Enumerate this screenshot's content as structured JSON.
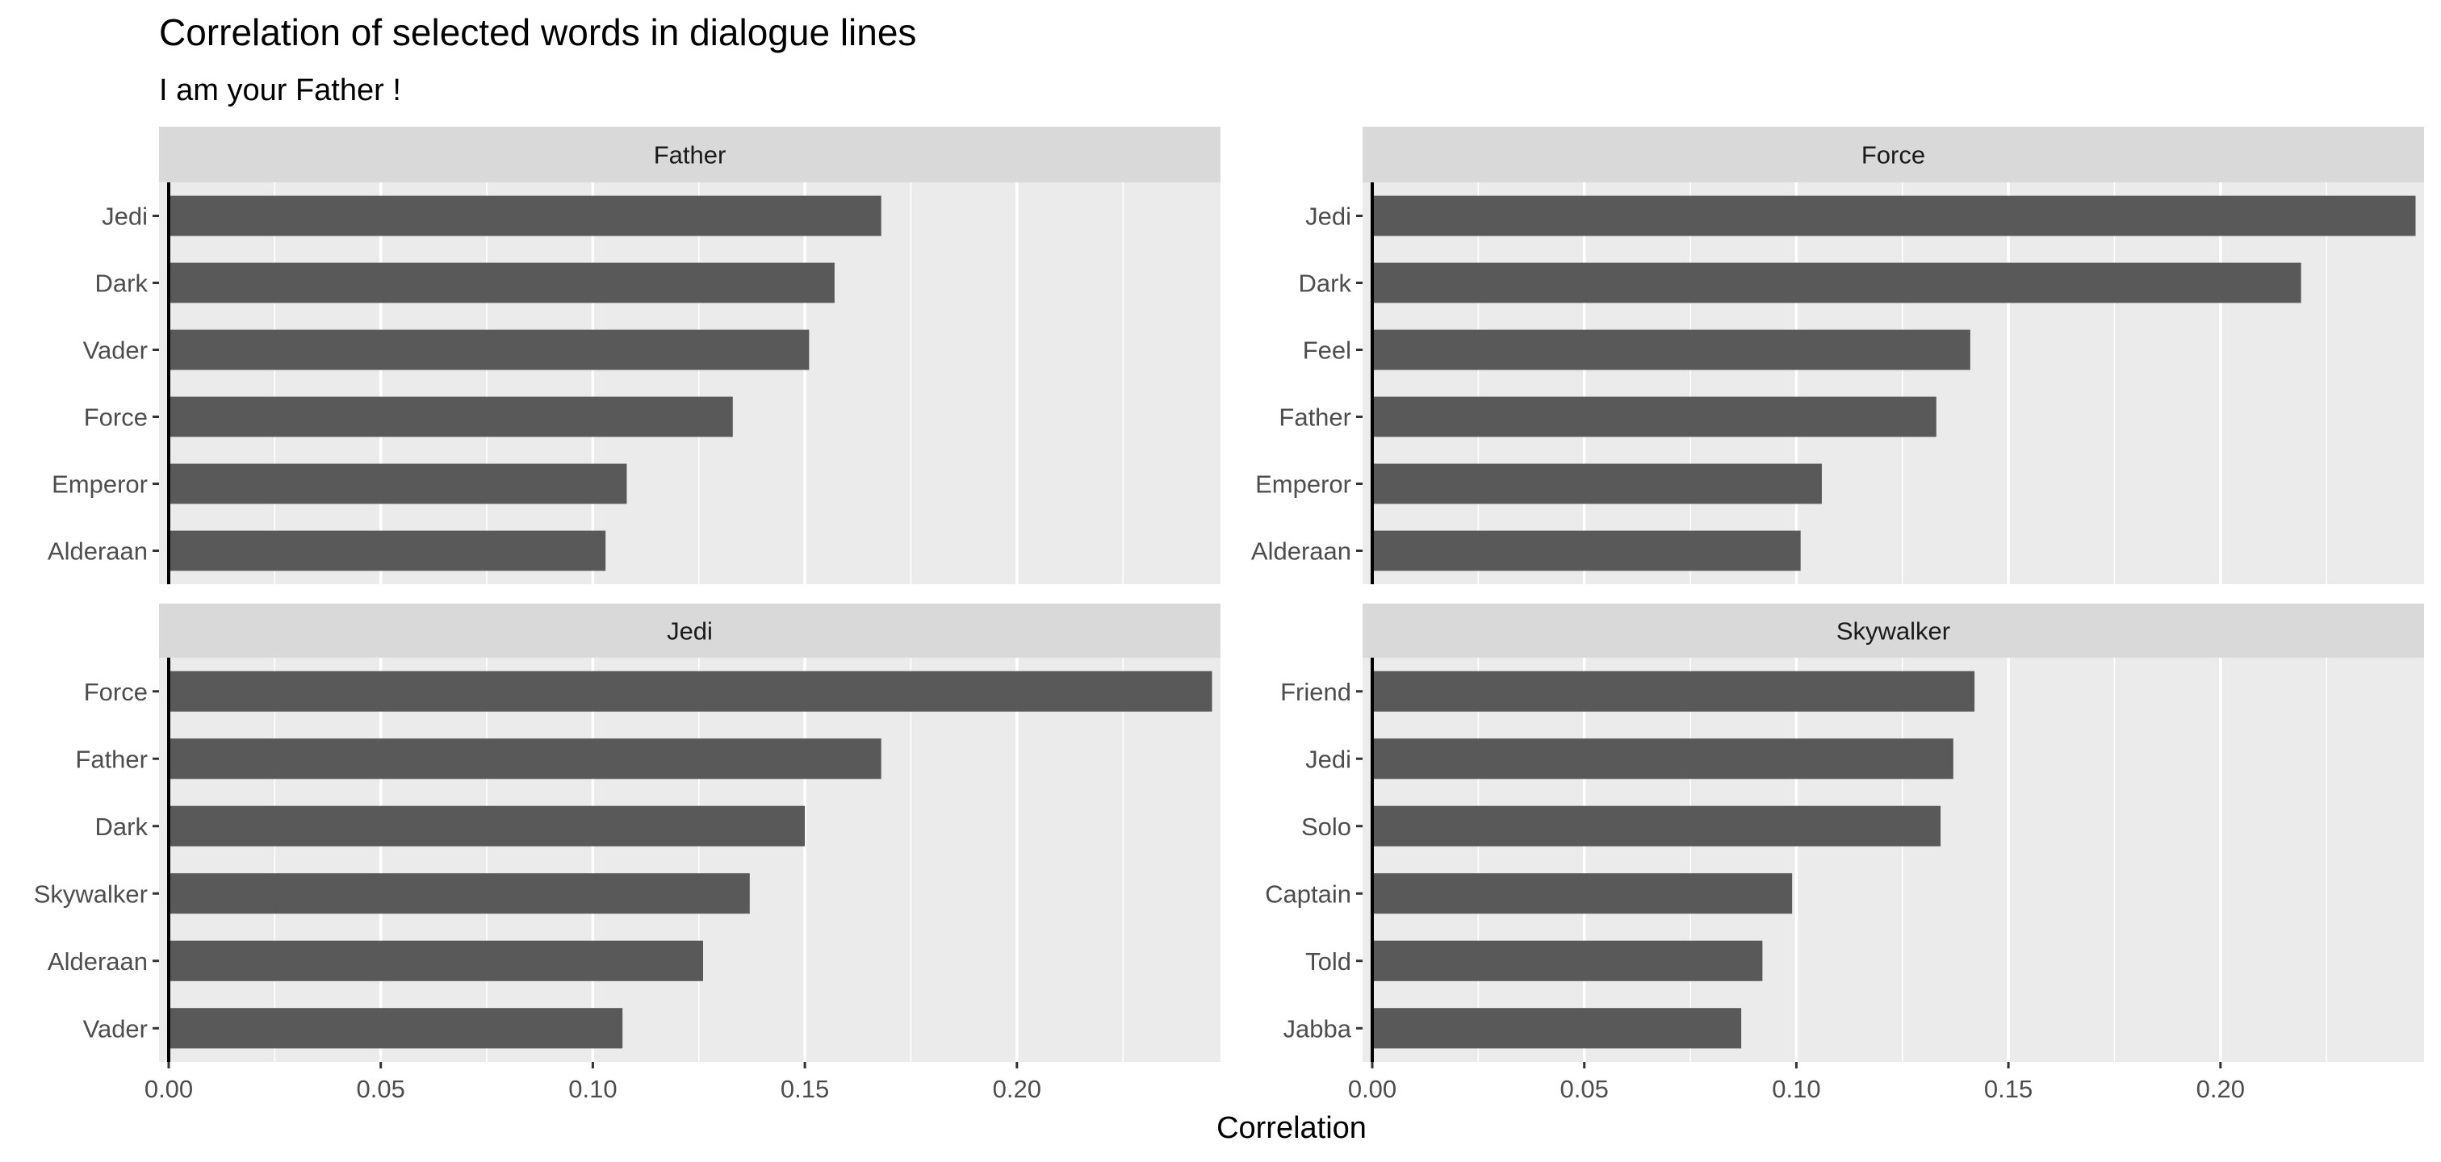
{
  "chart_data": {
    "type": "bar",
    "orientation": "horizontal",
    "title": "Correlation of selected words in dialogue lines",
    "subtitle": "I am your Father !",
    "xlabel": "Correlation",
    "xlim": [
      0,
      0.248
    ],
    "x_ticks": [
      0.0,
      0.05,
      0.1,
      0.15,
      0.2
    ],
    "x_tick_labels": [
      "0.00",
      "0.05",
      "0.10",
      "0.15",
      "0.20"
    ],
    "grid": true,
    "facets": [
      {
        "name": "Father",
        "categories": [
          "Jedi",
          "Dark",
          "Vader",
          "Force",
          "Emperor",
          "Alderaan"
        ],
        "values": [
          0.168,
          0.157,
          0.151,
          0.133,
          0.108,
          0.103
        ]
      },
      {
        "name": "Force",
        "categories": [
          "Jedi",
          "Dark",
          "Feel",
          "Father",
          "Emperor",
          "Alderaan"
        ],
        "values": [
          0.246,
          0.219,
          0.141,
          0.133,
          0.106,
          0.101
        ]
      },
      {
        "name": "Jedi",
        "categories": [
          "Force",
          "Father",
          "Dark",
          "Skywalker",
          "Alderaan",
          "Vader"
        ],
        "values": [
          0.246,
          0.168,
          0.15,
          0.137,
          0.126,
          0.107
        ]
      },
      {
        "name": "Skywalker",
        "categories": [
          "Friend",
          "Jedi",
          "Solo",
          "Captain",
          "Told",
          "Jabba"
        ],
        "values": [
          0.142,
          0.137,
          0.134,
          0.099,
          0.092,
          0.087
        ]
      }
    ]
  },
  "colors": {
    "panel_background": "#ebebeb",
    "strip_background": "#d9d9d9",
    "bar": "#595959",
    "grid": "#ffffff",
    "axis_text": "#4d4d4d",
    "text": "#000000",
    "strip_text": "#1a1a1a"
  }
}
